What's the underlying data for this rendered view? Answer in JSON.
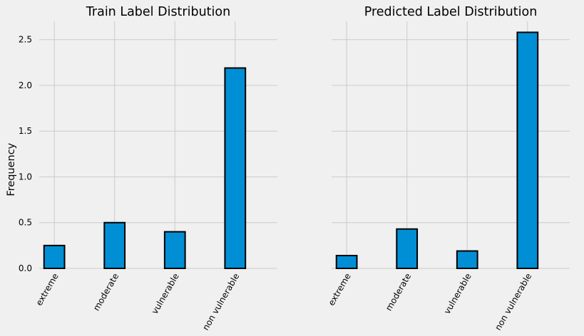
{
  "chart_data": [
    {
      "type": "bar",
      "title": "Train Label Distribution",
      "ylabel": "Frequency",
      "xlabel": "",
      "categories": [
        "extreme",
        "moderate",
        "vulnerable",
        "non vulnerable"
      ],
      "values": [
        0.25,
        0.5,
        0.4,
        2.19
      ],
      "ylim": [
        0,
        2.7
      ],
      "yticks": [
        "0.0",
        "0.5",
        "1.0",
        "1.5",
        "2.0",
        "2.5"
      ],
      "grid": true,
      "colors": {
        "bar": "#008fd5",
        "edge": "#000000",
        "background": "#f0f0f0",
        "grid": "#cbcbcb"
      }
    },
    {
      "type": "bar",
      "title": "Predicted Label Distribution",
      "ylabel": "",
      "xlabel": "",
      "categories": [
        "extreme",
        "moderate",
        "vulnerable",
        "non vulnerable"
      ],
      "values": [
        0.14,
        0.43,
        0.19,
        2.58
      ],
      "ylim": [
        0,
        2.7
      ],
      "yticks": [
        "0.0",
        "0.5",
        "1.0",
        "1.5",
        "2.0",
        "2.5"
      ],
      "grid": true,
      "colors": {
        "bar": "#008fd5",
        "edge": "#000000",
        "background": "#f0f0f0",
        "grid": "#cbcbcb"
      }
    }
  ]
}
